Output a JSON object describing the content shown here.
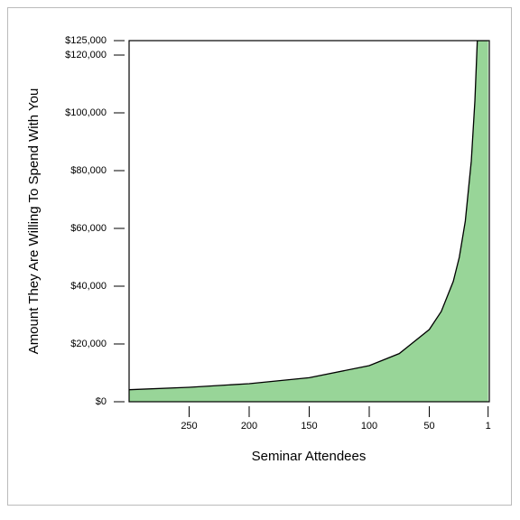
{
  "chart_data": {
    "type": "area",
    "x_label": "Seminar Attendees",
    "y_label": "Amount They Are Willing To Spend With You",
    "x": [
      300,
      250,
      200,
      150,
      100,
      75,
      50,
      40,
      30,
      25,
      20,
      15,
      12,
      10,
      1
    ],
    "values": [
      4167,
      5000,
      6250,
      8333,
      12500,
      16667,
      25000,
      31250,
      41667,
      50000,
      62500,
      83333,
      104167,
      125000,
      125000
    ],
    "color": "#98d598",
    "xlim": [
      300,
      0
    ],
    "xticks": [
      250,
      200,
      150,
      100,
      50,
      1
    ],
    "ylim": [
      0,
      125000
    ],
    "yticks": [
      {
        "value": 0,
        "label": "$0"
      },
      {
        "value": 20000,
        "label": "$20,000"
      },
      {
        "value": 40000,
        "label": "$40,000"
      },
      {
        "value": 60000,
        "label": "$60,000"
      },
      {
        "value": 80000,
        "label": "$80,000"
      },
      {
        "value": 100000,
        "label": "$100,000"
      },
      {
        "value": 120000,
        "label": "$120,000"
      },
      {
        "value": 125000,
        "label": "$125,000"
      }
    ]
  }
}
